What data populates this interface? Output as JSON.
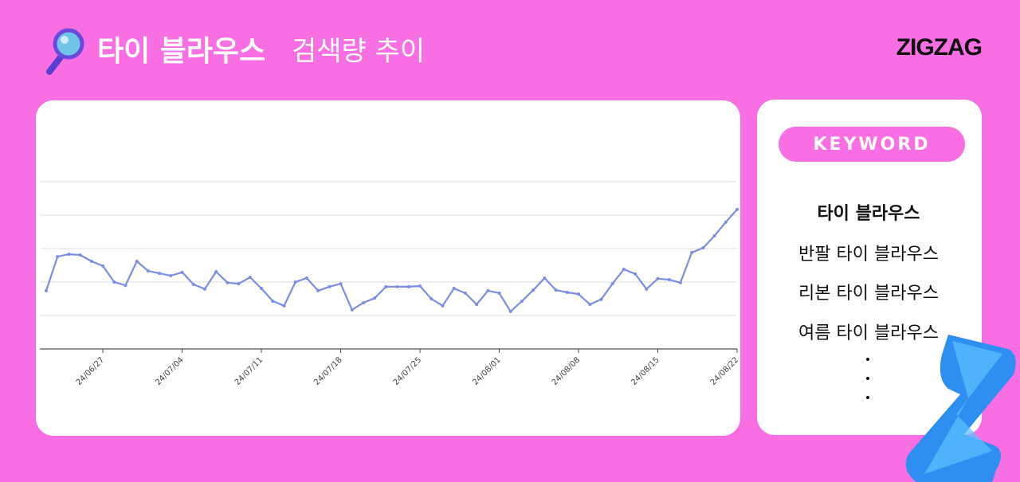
{
  "header": {
    "title_bold": "타이 블라우스",
    "title_rest": "검색량 추이",
    "logo": "ZIGZAG"
  },
  "chart_data": {
    "type": "line",
    "categories": [
      null,
      null,
      null,
      null,
      null,
      "24/06/27",
      null,
      null,
      null,
      null,
      null,
      null,
      "24/07/04",
      null,
      null,
      null,
      null,
      null,
      null,
      "24/07/11",
      null,
      null,
      null,
      null,
      null,
      null,
      "24/07/18",
      null,
      null,
      null,
      null,
      null,
      null,
      "24/07/25",
      null,
      null,
      null,
      null,
      null,
      null,
      "24/08/01",
      null,
      null,
      null,
      null,
      null,
      null,
      "24/08/08",
      null,
      null,
      null,
      null,
      null,
      null,
      "24/08/15",
      null,
      null,
      null,
      null,
      null,
      null,
      "24/08/22"
    ],
    "series": [
      {
        "color": "#7b8fe6",
        "values": [
          1.74,
          2.76,
          2.83,
          2.81,
          2.62,
          2.48,
          2.0,
          1.9,
          2.62,
          2.33,
          2.26,
          2.19,
          2.29,
          1.93,
          1.79,
          2.31,
          1.98,
          1.95,
          2.14,
          1.81,
          1.43,
          1.29,
          2.0,
          2.12,
          1.74,
          1.86,
          1.95,
          1.17,
          1.38,
          1.52,
          1.86,
          1.86,
          1.86,
          1.88,
          1.5,
          1.29,
          1.81,
          1.67,
          1.33,
          1.74,
          1.67,
          1.12,
          1.43,
          1.76,
          2.12,
          1.76,
          1.69,
          1.64,
          1.33,
          1.48,
          1.95,
          2.38,
          2.24,
          1.79,
          2.1,
          2.07,
          1.98,
          2.88,
          3.02,
          3.38,
          3.79,
          4.17
        ]
      }
    ],
    "ylim": [
      0,
      5
    ],
    "yticks": [
      0,
      1,
      2,
      3,
      4,
      5
    ],
    "grid": true
  },
  "keyword_panel": {
    "label": "KEYWORD",
    "keywords": [
      "타이 블라우스",
      "반팔 타이 블라우스",
      "리본 타이 블라우스",
      "여름 타이 블라우스"
    ]
  }
}
